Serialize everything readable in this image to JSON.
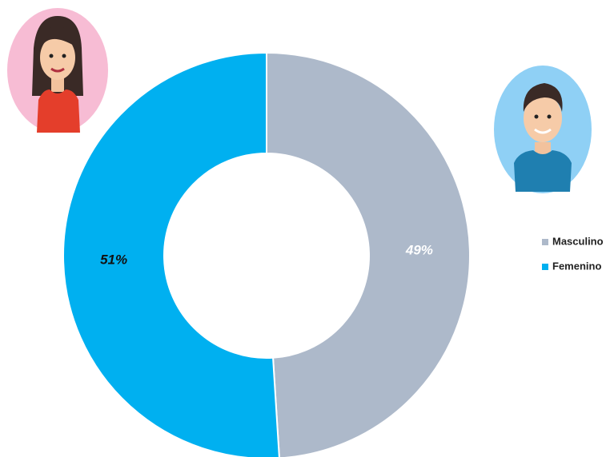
{
  "chart_data": {
    "type": "donut",
    "categories": [
      "Masculino",
      "Femenino"
    ],
    "values": [
      49,
      51
    ],
    "value_labels": [
      "49%",
      "51%"
    ],
    "colors": [
      "#adb9ca",
      "#00b0f0"
    ],
    "label_colors": [
      "#ffffff",
      "#111111"
    ],
    "legend": "right"
  }
}
